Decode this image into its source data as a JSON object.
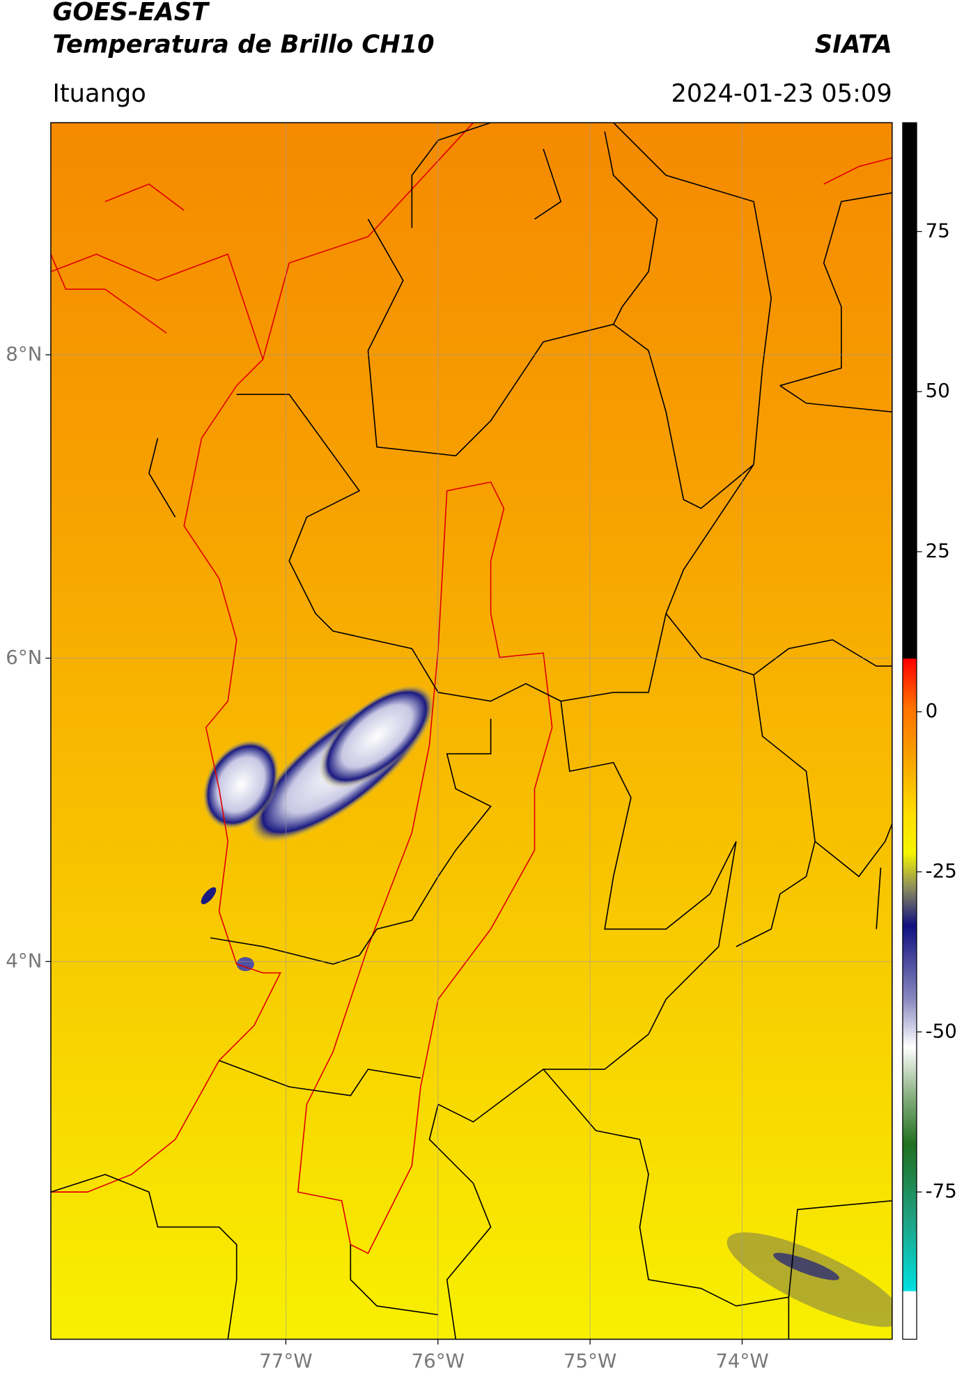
{
  "header": {
    "title": "GOES-EAST",
    "subtitle": "Temperatura de Brillo CH10",
    "source": "SIATA",
    "location": "Ituango",
    "timestamp": "2024-01-23 05:09"
  },
  "map": {
    "xlim": [
      -78.545,
      -73.014
    ],
    "ylim": [
      1.51,
      9.53
    ],
    "xticks": [
      {
        "value": -77,
        "label": "77°W"
      },
      {
        "value": -76,
        "label": "76°W"
      },
      {
        "value": -75,
        "label": "75°W"
      },
      {
        "value": -74,
        "label": "74°W"
      }
    ],
    "yticks": [
      {
        "value": 8,
        "label": "8°N"
      },
      {
        "value": 6,
        "label": "6°N"
      },
      {
        "value": 4,
        "label": "4°N"
      }
    ],
    "grid": true
  },
  "colorbar": {
    "lim": [
      -98,
      92
    ],
    "ticks": [
      75,
      50,
      25,
      0,
      -25,
      -50,
      -75
    ]
  }
}
